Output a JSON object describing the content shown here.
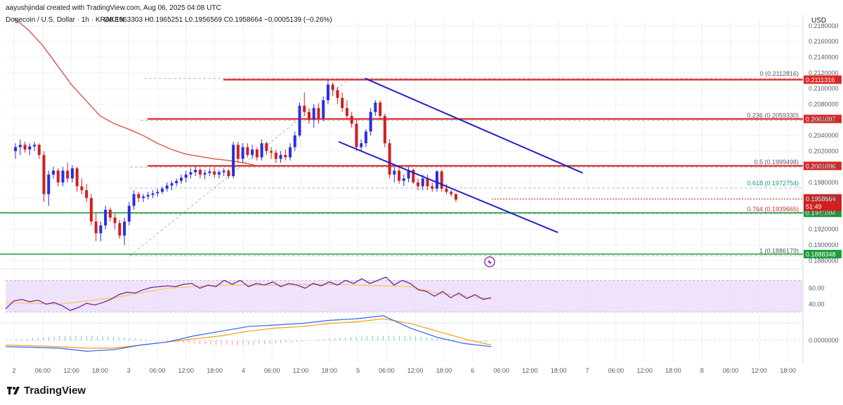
{
  "header": {
    "credit": "aayushjindal created with TradingView.com, Aug 06, 2025 04:08 UTC",
    "symbol": "Dogecoin / U.S. Dollar · 1h · KRAKEN",
    "ohlc": "O0.1963303 H0.1965251 L0.1956569 C0.1958664 −0.0005139 (−0.26%)"
  },
  "brand": "TradingView",
  "colors": {
    "up": "#2a2ee0",
    "down": "#d11f1f",
    "ma": "#d9534f",
    "resistance": "#e02424",
    "support": "#1a9e3a",
    "channel": "#1f1fc9",
    "rsi_band": "#e9d9fb",
    "rsi_line": "#7b1fa2",
    "rsi_ma": "#f2c94c",
    "macd": "#2962ff",
    "signal": "#ff9800"
  },
  "chart_data": {
    "type": "candlestick",
    "currency_label": "USD",
    "price_axis": {
      "ticks": [
        "0.2180000",
        "0.2160000",
        "0.2140000",
        "0.2120000",
        "0.2100000",
        "0.2080000",
        "0.2060000",
        "0.2040000",
        "0.2020000",
        "0.2000000",
        "0.1980000",
        "0.1960000",
        "0.1940000",
        "0.1920000",
        "0.1900000",
        "0.1880000"
      ],
      "range": [
        0.1874,
        0.2188
      ]
    },
    "time_axis": [
      "2",
      "06:00",
      "12:00",
      "18:00",
      "3",
      "06:00",
      "12:00",
      "18:00",
      "4",
      "06:00",
      "12:00",
      "18:00",
      "5",
      "06:00",
      "12:00",
      "18:00",
      "6",
      "06:00",
      "12:00",
      "18:00",
      "7",
      "06:00",
      "12:00",
      "18:00",
      "8",
      "06:00",
      "12:00",
      "18:00"
    ],
    "fib_levels": [
      {
        "text": "0 (0.2112816)",
        "value": 0.2112816
      },
      {
        "text": "0.236 (0.2059330)",
        "value": 0.205933
      },
      {
        "text": "0.5 (0.1999498)",
        "value": 0.1999498
      },
      {
        "text": "0.618 (0.1972754)",
        "value": 0.1972754
      },
      {
        "text": "0.764 (0.1939665)",
        "value": 0.1939665
      },
      {
        "text": "1 (0.1886179)",
        "value": 0.1886179
      }
    ],
    "horizontal_levels": [
      {
        "value": 0.2111316,
        "label": "0.2111316",
        "kind": "resistance"
      },
      {
        "value": 0.2061097,
        "label": "0.2061097",
        "kind": "resistance"
      },
      {
        "value": 0.2001096,
        "label": "0.2001096",
        "kind": "resistance"
      },
      {
        "value": 0.1941094,
        "label": "0.1941094",
        "kind": "support"
      },
      {
        "value": 0.1888348,
        "label": "0.1888348",
        "kind": "support"
      }
    ],
    "last_price": {
      "value": 0.1958664,
      "label": "0.1958664",
      "countdown": "51:49"
    },
    "channel": {
      "upper": [
        {
          "t": 6.0,
          "p": 0.2113
        },
        {
          "t": 8.0,
          "p": 0.1992
        }
      ],
      "lower": [
        {
          "t": 5.55,
          "p": 0.2032
        },
        {
          "t": 7.65,
          "p": 0.1916
        }
      ]
    },
    "candles": [
      [
        0.202,
        0.203,
        0.201,
        0.2025
      ],
      [
        0.2025,
        0.2035,
        0.2015,
        0.2028
      ],
      [
        0.2028,
        0.2032,
        0.2018,
        0.2022
      ],
      [
        0.2022,
        0.203,
        0.2015,
        0.2026
      ],
      [
        0.2026,
        0.2032,
        0.202,
        0.2028
      ],
      [
        0.2028,
        0.203,
        0.201,
        0.2015
      ],
      [
        0.2015,
        0.202,
        0.1955,
        0.1965
      ],
      [
        0.1965,
        0.1995,
        0.195,
        0.199
      ],
      [
        0.199,
        0.2,
        0.1985,
        0.1995
      ],
      [
        0.1995,
        0.1998,
        0.1975,
        0.198
      ],
      [
        0.198,
        0.2,
        0.1975,
        0.1995
      ],
      [
        0.1995,
        0.2005,
        0.198,
        0.1985
      ],
      [
        0.1985,
        0.2002,
        0.198,
        0.1998
      ],
      [
        0.1998,
        0.2,
        0.1968,
        0.1975
      ],
      [
        0.1975,
        0.1985,
        0.1965,
        0.197
      ],
      [
        0.197,
        0.1978,
        0.1955,
        0.196
      ],
      [
        0.196,
        0.1965,
        0.1925,
        0.193
      ],
      [
        0.193,
        0.194,
        0.1905,
        0.1915
      ],
      [
        0.1915,
        0.193,
        0.1905,
        0.1925
      ],
      [
        0.1925,
        0.195,
        0.192,
        0.1945
      ],
      [
        0.1945,
        0.1948,
        0.193,
        0.1935
      ],
      [
        0.1935,
        0.194,
        0.192,
        0.1928
      ],
      [
        0.1928,
        0.1932,
        0.1908,
        0.1912
      ],
      [
        0.1912,
        0.1935,
        0.19,
        0.193
      ],
      [
        0.193,
        0.1955,
        0.1925,
        0.195
      ],
      [
        0.195,
        0.197,
        0.1945,
        0.1965
      ],
      [
        0.1965,
        0.1968,
        0.1955,
        0.196
      ],
      [
        0.196,
        0.1965,
        0.1955,
        0.1962
      ],
      [
        0.1962,
        0.1968,
        0.1958,
        0.1964
      ],
      [
        0.1964,
        0.197,
        0.196,
        0.1966
      ],
      [
        0.1966,
        0.1972,
        0.1962,
        0.1968
      ],
      [
        0.1968,
        0.1975,
        0.1965,
        0.1972
      ],
      [
        0.1972,
        0.198,
        0.1968,
        0.1976
      ],
      [
        0.1976,
        0.1982,
        0.197,
        0.1979
      ],
      [
        0.1979,
        0.1985,
        0.1975,
        0.1982
      ],
      [
        0.1982,
        0.199,
        0.1978,
        0.1986
      ],
      [
        0.1986,
        0.1995,
        0.198,
        0.199
      ],
      [
        0.199,
        0.1998,
        0.1985,
        0.1993
      ],
      [
        0.1993,
        0.2,
        0.1988,
        0.1996
      ],
      [
        0.1996,
        0.1998,
        0.1985,
        0.199
      ],
      [
        0.199,
        0.1996,
        0.1984,
        0.1992
      ],
      [
        0.1992,
        0.1998,
        0.1988,
        0.1994
      ],
      [
        0.1994,
        0.1999,
        0.1986,
        0.199
      ],
      [
        0.199,
        0.1996,
        0.1985,
        0.1993
      ],
      [
        0.1993,
        0.1998,
        0.1988,
        0.1995
      ],
      [
        0.1995,
        0.1997,
        0.1985,
        0.1988
      ],
      [
        0.1988,
        0.2032,
        0.1985,
        0.2028
      ],
      [
        0.2028,
        0.2032,
        0.2005,
        0.201
      ],
      [
        0.201,
        0.203,
        0.2005,
        0.2025
      ],
      [
        0.2025,
        0.203,
        0.2012,
        0.2015
      ],
      [
        0.2015,
        0.2028,
        0.201,
        0.2022
      ],
      [
        0.2022,
        0.2025,
        0.2008,
        0.2012
      ],
      [
        0.2012,
        0.2035,
        0.2008,
        0.203
      ],
      [
        0.203,
        0.2032,
        0.2015,
        0.202
      ],
      [
        0.202,
        0.2025,
        0.201,
        0.2018
      ],
      [
        0.2018,
        0.2022,
        0.2005,
        0.201
      ],
      [
        0.201,
        0.202,
        0.2005,
        0.2015
      ],
      [
        0.2015,
        0.2022,
        0.2008,
        0.2012
      ],
      [
        0.2012,
        0.203,
        0.2008,
        0.2025
      ],
      [
        0.2025,
        0.2045,
        0.202,
        0.204
      ],
      [
        0.204,
        0.2082,
        0.2038,
        0.2078
      ],
      [
        0.2078,
        0.2095,
        0.2065,
        0.207
      ],
      [
        0.207,
        0.2075,
        0.2055,
        0.206
      ],
      [
        0.206,
        0.208,
        0.205,
        0.2075
      ],
      [
        0.2075,
        0.208,
        0.2055,
        0.2062
      ],
      [
        0.2062,
        0.209,
        0.2058,
        0.2085
      ],
      [
        0.2085,
        0.2112,
        0.208,
        0.2105
      ],
      [
        0.2105,
        0.2108,
        0.209,
        0.2098
      ],
      [
        0.2098,
        0.2102,
        0.208,
        0.2088
      ],
      [
        0.2088,
        0.2095,
        0.207,
        0.2075
      ],
      [
        0.2075,
        0.2085,
        0.206,
        0.2065
      ],
      [
        0.2065,
        0.207,
        0.205,
        0.2055
      ],
      [
        0.2055,
        0.206,
        0.202,
        0.2025
      ],
      [
        0.2025,
        0.2035,
        0.202,
        0.203
      ],
      [
        0.203,
        0.2048,
        0.2025,
        0.2045
      ],
      [
        0.2045,
        0.2075,
        0.204,
        0.207
      ],
      [
        0.207,
        0.2085,
        0.2065,
        0.2082
      ],
      [
        0.2082,
        0.2085,
        0.206,
        0.2065
      ],
      [
        0.2065,
        0.2068,
        0.2025,
        0.203
      ],
      [
        0.203,
        0.2035,
        0.1985,
        0.199
      ],
      [
        0.199,
        0.2,
        0.198,
        0.1995
      ],
      [
        0.1995,
        0.2,
        0.1978,
        0.1982
      ],
      [
        0.1982,
        0.199,
        0.1975,
        0.1985
      ],
      [
        0.1985,
        0.2,
        0.198,
        0.1996
      ],
      [
        0.1996,
        0.1998,
        0.1978,
        0.198
      ],
      [
        0.198,
        0.1985,
        0.197,
        0.1975
      ],
      [
        0.1975,
        0.199,
        0.197,
        0.1985
      ],
      [
        0.1985,
        0.199,
        0.197,
        0.1975
      ],
      [
        0.1975,
        0.198,
        0.1968,
        0.1972
      ],
      [
        0.1972,
        0.1996,
        0.1968,
        0.1994
      ],
      [
        0.1994,
        0.1996,
        0.1968,
        0.1972
      ],
      [
        0.1972,
        0.1978,
        0.1965,
        0.1968
      ],
      [
        0.1968,
        0.197,
        0.1962,
        0.1965
      ],
      [
        0.1965,
        0.1966,
        0.1955,
        0.1958
      ]
    ],
    "candle_t0": 0.05,
    "candle_step": 0.04348,
    "ma_line": [
      [
        0,
        0.219
      ],
      [
        0.5,
        0.2175
      ],
      [
        1,
        0.2155
      ],
      [
        1.5,
        0.213
      ],
      [
        2,
        0.2105
      ],
      [
        2.5,
        0.2085
      ],
      [
        3,
        0.2065
      ],
      [
        3.5,
        0.2055
      ],
      [
        4,
        0.2048
      ],
      [
        4.5,
        0.204
      ],
      [
        5,
        0.203
      ],
      [
        5.5,
        0.2022
      ],
      [
        6,
        0.2016
      ],
      [
        6.5,
        0.2013
      ],
      [
        7,
        0.201
      ],
      [
        7.5,
        0.2008
      ],
      [
        8,
        0.2005
      ],
      [
        8.4,
        0.2002
      ]
    ],
    "rsi": {
      "ticks": [
        "60.00",
        "40.00"
      ],
      "series": [
        [
          0,
          34
        ],
        [
          0.3,
          44
        ],
        [
          0.6,
          46
        ],
        [
          0.9,
          43
        ],
        [
          1.2,
          45
        ],
        [
          1.5,
          40
        ],
        [
          1.8,
          42
        ],
        [
          2.1,
          38
        ],
        [
          2.4,
          32
        ],
        [
          2.7,
          36
        ],
        [
          3.0,
          41
        ],
        [
          3.3,
          39
        ],
        [
          3.6,
          42
        ],
        [
          3.9,
          46
        ],
        [
          4.2,
          52
        ],
        [
          4.5,
          55
        ],
        [
          4.8,
          54
        ],
        [
          5.1,
          58
        ],
        [
          5.4,
          61
        ],
        [
          5.7,
          62
        ],
        [
          6.0,
          63
        ],
        [
          6.3,
          62
        ],
        [
          6.6,
          65
        ],
        [
          6.9,
          66
        ],
        [
          7.2,
          60
        ],
        [
          7.5,
          64
        ],
        [
          7.8,
          62
        ],
        [
          8.1,
          70
        ],
        [
          8.4,
          65
        ],
        [
          8.7,
          70
        ],
        [
          9.0,
          62
        ],
        [
          9.3,
          66
        ],
        [
          9.6,
          64
        ],
        [
          9.9,
          68
        ],
        [
          10.2,
          62
        ],
        [
          10.5,
          66
        ],
        [
          10.8,
          64
        ],
        [
          11.1,
          60
        ],
        [
          11.4,
          66
        ],
        [
          11.7,
          63
        ],
        [
          12.0,
          68
        ],
        [
          12.3,
          64
        ],
        [
          12.6,
          70
        ],
        [
          12.9,
          66
        ],
        [
          13.2,
          72
        ],
        [
          13.5,
          66
        ],
        [
          13.8,
          70
        ],
        [
          14.1,
          74
        ],
        [
          14.4,
          64
        ],
        [
          14.7,
          70
        ],
        [
          15.0,
          66
        ],
        [
          15.3,
          58
        ],
        [
          15.6,
          56
        ],
        [
          15.9,
          50
        ],
        [
          16.2,
          56
        ],
        [
          16.5,
          48
        ],
        [
          16.8,
          54
        ],
        [
          17.1,
          47
        ],
        [
          17.4,
          52
        ],
        [
          17.7,
          46
        ],
        [
          18.0,
          48
        ]
      ],
      "ma": [
        [
          0,
          42
        ],
        [
          2,
          40
        ],
        [
          4,
          48
        ],
        [
          6,
          60
        ],
        [
          8,
          64
        ],
        [
          10,
          64
        ],
        [
          12,
          65
        ],
        [
          14,
          63
        ],
        [
          15,
          62
        ],
        [
          16,
          54
        ],
        [
          17,
          50
        ],
        [
          18,
          47
        ]
      ]
    },
    "macd": {
      "zero_label": "0.0000000",
      "macd_line": [
        [
          0,
          -4
        ],
        [
          2,
          -5
        ],
        [
          3,
          -7
        ],
        [
          4,
          -6
        ],
        [
          5,
          -3
        ],
        [
          6,
          -1
        ],
        [
          7,
          3
        ],
        [
          8,
          6
        ],
        [
          9,
          9
        ],
        [
          10,
          10
        ],
        [
          11,
          11
        ],
        [
          12,
          13
        ],
        [
          13,
          14
        ],
        [
          14,
          16
        ],
        [
          14.5,
          12
        ],
        [
          15,
          8
        ],
        [
          16,
          2
        ],
        [
          17,
          -2
        ],
        [
          18,
          -4
        ]
      ],
      "signal_line": [
        [
          0,
          -3
        ],
        [
          2,
          -4
        ],
        [
          3,
          -5
        ],
        [
          4,
          -5
        ],
        [
          5,
          -3
        ],
        [
          6,
          -1
        ],
        [
          7,
          1
        ],
        [
          8,
          3
        ],
        [
          9,
          6
        ],
        [
          10,
          8
        ],
        [
          11,
          9
        ],
        [
          12,
          11
        ],
        [
          13,
          12
        ],
        [
          14,
          14
        ],
        [
          15,
          11
        ],
        [
          16,
          6
        ],
        [
          17,
          1
        ],
        [
          18,
          -3
        ]
      ]
    }
  }
}
